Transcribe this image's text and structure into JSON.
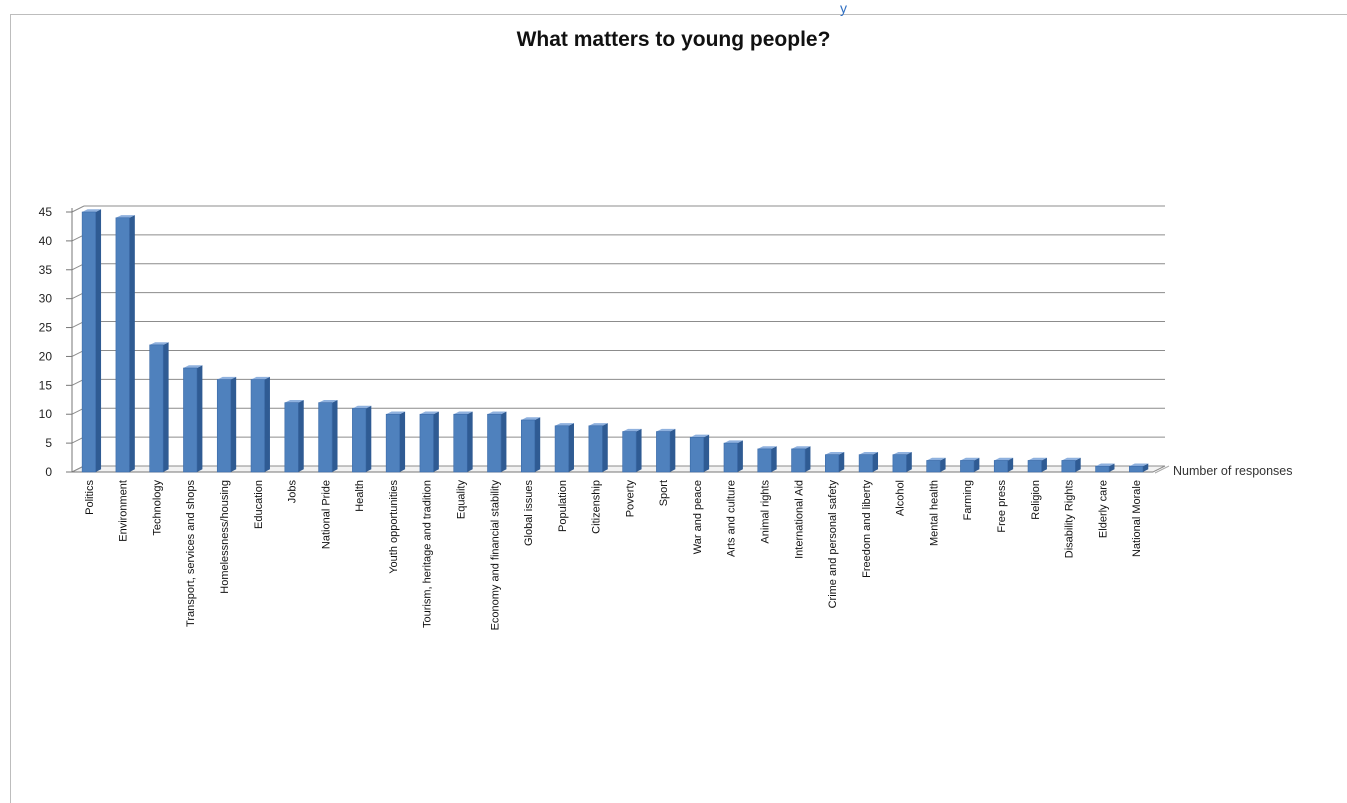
{
  "header_fragment": "y",
  "chart_data": {
    "type": "bar",
    "title": "What matters to young people?",
    "xlabel": "",
    "ylabel": "",
    "ylim": [
      0,
      45
    ],
    "yticks": [
      "0",
      "5",
      "10",
      "15",
      "20",
      "25",
      "30",
      "35",
      "40",
      "45"
    ],
    "grid": true,
    "legend_position": "right",
    "categories": [
      "Politics",
      "Environment",
      "Technology",
      "Transport, services and shops",
      "Homelessness/housing",
      "Education",
      "Jobs",
      "National Pride",
      "Health",
      "Youth opportunities",
      "Tourism, heritage and tradition",
      "Equality",
      "Economy and financial stability",
      "Global issues",
      "Population",
      "Citizenship",
      "Poverty",
      "Sport",
      "War and peace",
      "Arts and culture",
      "Animal rights",
      "International Aid",
      "Crime and personal safety",
      "Freedom and liberty",
      "Alcohol",
      "Mental health",
      "Farming",
      "Free press",
      "Religion",
      "Disability Rights",
      "Elderly care",
      "National Morale"
    ],
    "series": [
      {
        "name": "Number of responses",
        "color": "#4f81bd",
        "values": [
          45,
          44,
          22,
          18,
          16,
          16,
          12,
          12,
          11,
          10,
          10,
          10,
          10,
          9,
          8,
          8,
          7,
          7,
          6,
          5,
          4,
          4,
          3,
          3,
          3,
          2,
          2,
          2,
          2,
          2,
          1,
          1
        ]
      }
    ]
  }
}
